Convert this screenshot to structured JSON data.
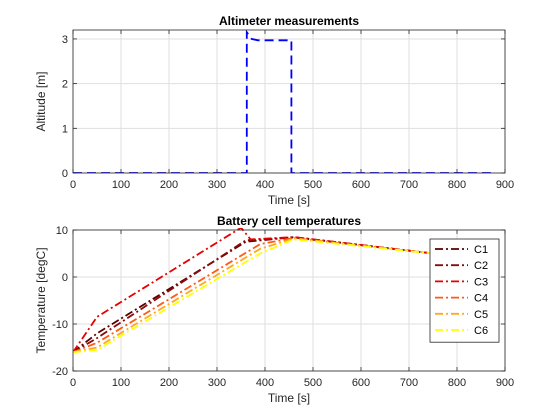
{
  "chart_data": [
    {
      "type": "line",
      "title": "Altimeter measurements",
      "xlabel": "Time [s]",
      "ylabel": "Altitude [m]",
      "xlim": [
        0,
        900
      ],
      "ylim": [
        0,
        3.2
      ],
      "xticks": [
        0,
        100,
        200,
        300,
        400,
        500,
        600,
        700,
        800,
        900
      ],
      "yticks": [
        0,
        1,
        2,
        3
      ],
      "grid": true,
      "series": [
        {
          "color": "#0000ff",
          "style": "dashed",
          "x": [
            0,
            362,
            362,
            372,
            385,
            455,
            455,
            880
          ],
          "y": [
            0,
            0,
            3.15,
            3.0,
            2.97,
            2.97,
            0,
            0
          ]
        }
      ]
    },
    {
      "type": "line",
      "title": "Battery cell temperatures",
      "xlabel": "Time [s]",
      "ylabel": "Temperature [degC]",
      "xlim": [
        0,
        900
      ],
      "ylim": [
        -20,
        10
      ],
      "xticks": [
        0,
        100,
        200,
        300,
        400,
        500,
        600,
        700,
        800,
        900
      ],
      "yticks": [
        -20,
        -10,
        0,
        10
      ],
      "grid": true,
      "legend": "top-right",
      "series": [
        {
          "name": "C1",
          "color": "#5a0000",
          "style": "dashdot",
          "x": [
            0,
            50,
            360,
            460,
            750,
            880
          ],
          "y": [
            -16,
            -12,
            7.5,
            8.5,
            5,
            4
          ]
        },
        {
          "name": "C2",
          "color": "#8a0a0a",
          "style": "dashdot",
          "x": [
            0,
            50,
            360,
            460,
            750,
            880
          ],
          "y": [
            -16,
            -13,
            7.8,
            8.4,
            5,
            4
          ]
        },
        {
          "name": "C3",
          "color": "#e60000",
          "style": "dashdot",
          "x": [
            0,
            50,
            350,
            370,
            460,
            750,
            880
          ],
          "y": [
            -16,
            -8.5,
            10.5,
            8.0,
            8.5,
            5,
            4
          ]
        },
        {
          "name": "C4",
          "color": "#ff5a14",
          "style": "dashdot",
          "x": [
            0,
            50,
            390,
            460,
            750,
            880
          ],
          "y": [
            -16,
            -14,
            7.0,
            8.3,
            5,
            4
          ]
        },
        {
          "name": "C5",
          "color": "#ffaa1e",
          "style": "dashdot",
          "x": [
            0,
            50,
            390,
            460,
            750,
            880
          ],
          "y": [
            -16,
            -15,
            6.0,
            8.2,
            5,
            4
          ]
        },
        {
          "name": "C6",
          "color": "#ffff00",
          "style": "dashdot",
          "x": [
            0,
            50,
            390,
            460,
            750,
            880
          ],
          "y": [
            -16,
            -15.5,
            5.0,
            8.0,
            5,
            4
          ]
        }
      ]
    }
  ]
}
